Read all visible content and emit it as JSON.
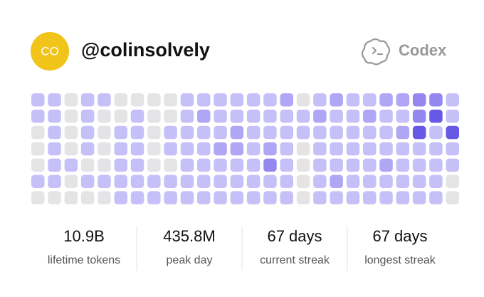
{
  "header": {
    "avatar_initials": "CO",
    "username": "@colinsolvely",
    "brand": "Codex"
  },
  "heatmap": {
    "colors": [
      "#e4e4e6",
      "#c6c0f8",
      "#b1a6f5",
      "#9586f0",
      "#6758e6"
    ],
    "levels": [
      [
        1,
        1,
        0,
        1,
        1,
        0,
        0,
        0,
        0,
        1,
        1,
        1,
        1,
        1,
        1,
        2,
        0,
        1,
        2,
        1,
        1,
        2,
        2,
        3,
        3,
        1
      ],
      [
        1,
        1,
        0,
        1,
        0,
        0,
        1,
        0,
        0,
        1,
        2,
        1,
        1,
        1,
        1,
        1,
        1,
        2,
        1,
        1,
        2,
        1,
        1,
        3,
        4,
        1
      ],
      [
        0,
        1,
        0,
        1,
        0,
        1,
        1,
        0,
        1,
        1,
        1,
        1,
        2,
        1,
        1,
        1,
        1,
        1,
        1,
        1,
        1,
        1,
        2,
        4,
        1,
        4
      ],
      [
        0,
        1,
        0,
        1,
        0,
        1,
        1,
        0,
        1,
        1,
        1,
        2,
        2,
        1,
        2,
        1,
        0,
        1,
        1,
        1,
        1,
        1,
        1,
        1,
        1,
        1
      ],
      [
        0,
        1,
        1,
        0,
        0,
        1,
        1,
        0,
        0,
        1,
        1,
        1,
        1,
        1,
        3,
        1,
        0,
        1,
        1,
        1,
        1,
        2,
        1,
        1,
        1,
        1
      ],
      [
        1,
        1,
        0,
        1,
        1,
        1,
        1,
        1,
        1,
        1,
        1,
        1,
        1,
        1,
        1,
        1,
        0,
        1,
        2,
        1,
        1,
        1,
        1,
        1,
        1,
        0
      ],
      [
        0,
        0,
        0,
        0,
        0,
        1,
        1,
        1,
        1,
        1,
        1,
        1,
        1,
        1,
        1,
        1,
        0,
        1,
        1,
        1,
        1,
        1,
        1,
        1,
        1,
        0
      ]
    ]
  },
  "stats": [
    {
      "value": "10.9B",
      "label": "lifetime tokens"
    },
    {
      "value": "435.8M",
      "label": "peak day"
    },
    {
      "value": "67 days",
      "label": "current streak"
    },
    {
      "value": "67 days",
      "label": "longest streak"
    }
  ]
}
